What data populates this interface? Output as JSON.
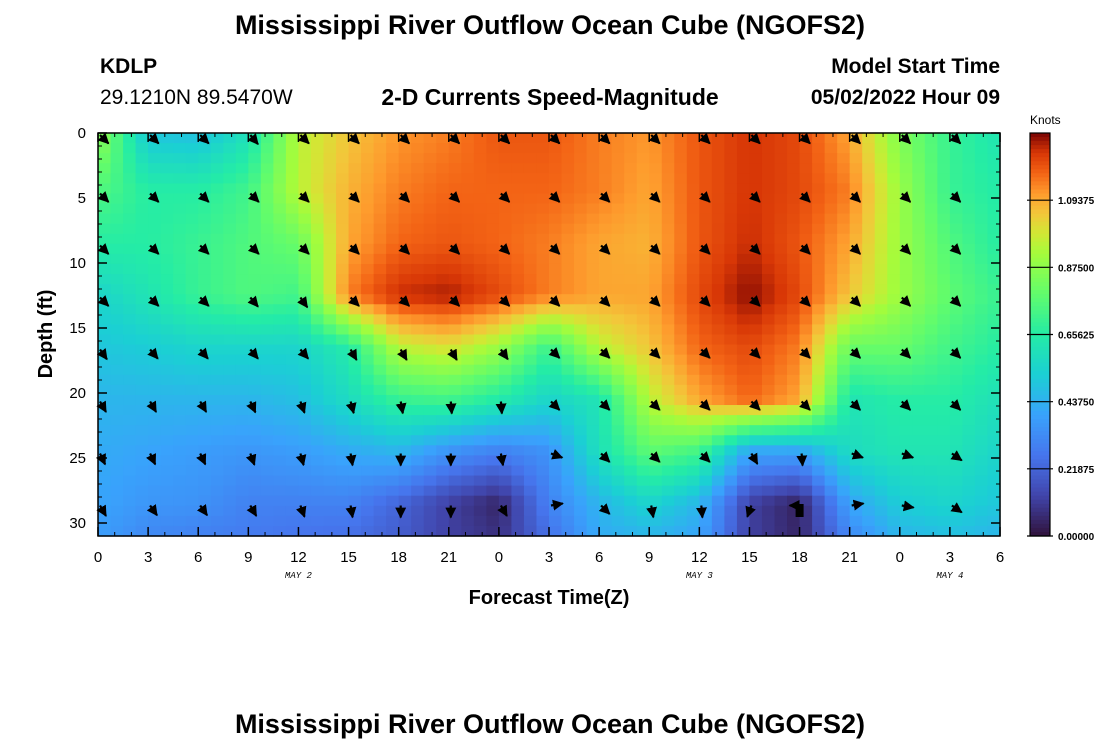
{
  "header": {
    "title": "Mississippi River Outflow Ocean Cube (NGOFS2)",
    "station_id": "KDLP",
    "station_coords": "29.1210N  89.5470W",
    "subtitle": "2-D Currents Speed-Magnitude",
    "model_start_label": "Model Start Time",
    "model_start_value": "05/02/2022 Hour 09",
    "bottom_title": "Mississippi River Outflow Ocean Cube (NGOFS2)"
  },
  "chart_data": {
    "type": "heatmap",
    "xlabel": "Forecast Time(Z)",
    "ylabel": "Depth (ft)",
    "x_tick_labels": [
      "0",
      "3",
      "6",
      "9",
      "12",
      "15",
      "18",
      "21",
      "0",
      "3",
      "6",
      "9",
      "12",
      "15",
      "18",
      "21",
      "0",
      "3",
      "6"
    ],
    "x_range_hours": [
      0,
      54
    ],
    "date_labels": [
      {
        "hour": 12,
        "text": "MAY 2"
      },
      {
        "hour": 36,
        "text": "MAY 3"
      },
      {
        "hour": 51,
        "text": "MAY 4"
      }
    ],
    "ylim": [
      0,
      31
    ],
    "y_ticks": [
      0,
      5,
      10,
      15,
      20,
      25,
      30
    ],
    "y_inverted": true,
    "colorbar": {
      "title": "Knots",
      "range": [
        0,
        1.3125
      ],
      "ticks": [
        0.0,
        0.21875,
        0.4375,
        0.65625,
        0.875,
        1.09375
      ],
      "tick_labels": [
        "0.00000",
        "0.21875",
        "0.43750",
        "0.65625",
        "0.87500",
        "1.09375"
      ],
      "colormap": "turbo"
    },
    "grid_hours": [
      0,
      3,
      6,
      9,
      12,
      15,
      18,
      21,
      24,
      27,
      30,
      33,
      36,
      39,
      42,
      45,
      48,
      51,
      54
    ],
    "grid_depths": [
      0,
      4.5,
      8.5,
      12.5,
      16.5,
      20.5,
      24.5,
      28.5,
      31
    ],
    "speed_knots": [
      [
        0.9,
        0.5,
        0.48,
        0.6,
        0.95,
        1.05,
        1.12,
        1.15,
        1.2,
        1.2,
        1.15,
        1.12,
        1.2,
        1.25,
        1.22,
        1.1,
        0.85,
        0.7,
        0.62
      ],
      [
        0.75,
        0.66,
        0.66,
        0.72,
        0.95,
        1.08,
        1.15,
        1.18,
        1.18,
        1.18,
        1.15,
        1.1,
        1.2,
        1.25,
        1.22,
        1.15,
        0.9,
        0.7,
        0.65
      ],
      [
        0.66,
        0.66,
        0.7,
        0.75,
        0.8,
        1.1,
        1.18,
        1.2,
        1.18,
        1.15,
        1.1,
        1.08,
        1.2,
        1.26,
        1.2,
        1.1,
        0.9,
        0.75,
        0.66
      ],
      [
        0.55,
        0.62,
        0.7,
        0.75,
        0.72,
        1.15,
        1.26,
        1.28,
        1.22,
        1.15,
        1.1,
        1.1,
        1.22,
        1.3,
        1.22,
        1.05,
        0.9,
        0.78,
        0.7
      ],
      [
        0.5,
        0.52,
        0.55,
        0.55,
        0.55,
        0.65,
        0.95,
        1.0,
        0.9,
        0.7,
        0.95,
        1.05,
        1.18,
        1.22,
        1.15,
        0.8,
        0.8,
        0.72,
        0.66
      ],
      [
        0.45,
        0.45,
        0.45,
        0.45,
        0.48,
        0.58,
        0.7,
        0.72,
        0.65,
        0.55,
        0.62,
        0.95,
        1.1,
        1.18,
        1.1,
        0.62,
        0.66,
        0.66,
        0.6
      ],
      [
        0.42,
        0.4,
        0.38,
        0.36,
        0.38,
        0.42,
        0.45,
        0.35,
        0.3,
        0.35,
        0.6,
        0.78,
        0.72,
        0.4,
        0.4,
        0.58,
        0.62,
        0.62,
        0.55
      ],
      [
        0.4,
        0.36,
        0.35,
        0.3,
        0.3,
        0.3,
        0.22,
        0.12,
        0.05,
        0.3,
        0.45,
        0.55,
        0.45,
        0.12,
        0.04,
        0.4,
        0.52,
        0.55,
        0.5
      ],
      [
        0.38,
        0.32,
        0.3,
        0.28,
        0.26,
        0.25,
        0.2,
        0.12,
        0.08,
        0.25,
        0.42,
        0.45,
        0.4,
        0.12,
        0.05,
        0.32,
        0.45,
        0.48,
        0.45
      ]
    ],
    "vector_depths": [
      0,
      4.5,
      8.5,
      12.5,
      16.5,
      20.5,
      24.5,
      28.5
    ],
    "vector_hours": [
      0,
      3,
      6,
      9,
      12,
      15,
      18,
      21,
      24,
      27,
      30,
      33,
      36,
      39,
      42,
      45,
      48,
      51
    ],
    "vector_directions_deg": [
      [
        135,
        135,
        135,
        140,
        135,
        135,
        135,
        135,
        135,
        135,
        135,
        135,
        135,
        135,
        135,
        135,
        135,
        135
      ],
      [
        135,
        135,
        135,
        135,
        135,
        135,
        135,
        135,
        135,
        135,
        135,
        135,
        135,
        135,
        135,
        135,
        135,
        135
      ],
      [
        135,
        135,
        135,
        135,
        135,
        135,
        135,
        135,
        135,
        135,
        135,
        135,
        135,
        135,
        135,
        135,
        135,
        135
      ],
      [
        135,
        135,
        135,
        140,
        145,
        135,
        135,
        135,
        135,
        135,
        135,
        135,
        135,
        135,
        135,
        135,
        135,
        135
      ],
      [
        145,
        140,
        140,
        140,
        140,
        150,
        150,
        150,
        145,
        135,
        135,
        135,
        135,
        135,
        135,
        135,
        135,
        135
      ],
      [
        150,
        150,
        150,
        155,
        160,
        165,
        170,
        175,
        175,
        135,
        135,
        135,
        135,
        135,
        135,
        135,
        135,
        135
      ],
      [
        155,
        155,
        155,
        160,
        165,
        170,
        180,
        180,
        170,
        110,
        135,
        135,
        135,
        150,
        175,
        110,
        110,
        125
      ],
      [
        150,
        145,
        145,
        150,
        160,
        170,
        180,
        180,
        150,
        80,
        135,
        170,
        175,
        200,
        270,
        80,
        100,
        125
      ]
    ],
    "markers": [
      {
        "hour": 42,
        "depth": 29,
        "type": "square"
      }
    ]
  }
}
